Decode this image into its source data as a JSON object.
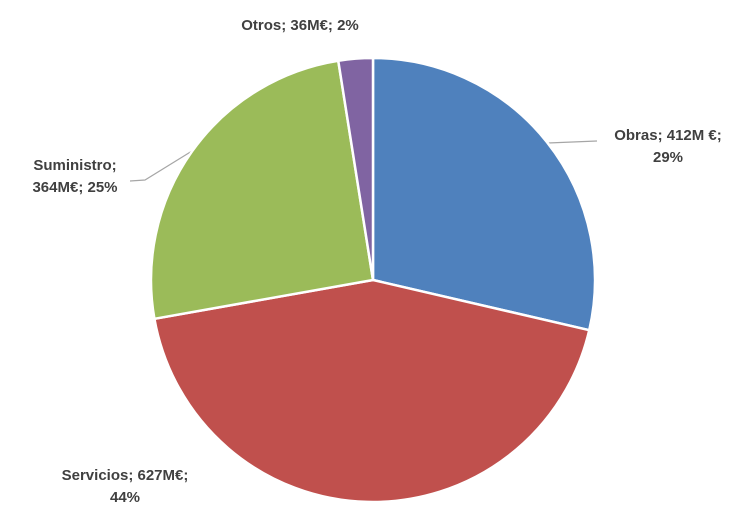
{
  "chart_data": {
    "type": "pie",
    "values": [
      412,
      627,
      364,
      36
    ],
    "value_labels": [
      [
        "Obras; 412M €;",
        "29%"
      ],
      [
        "Servicios; 627M€;",
        "44%"
      ],
      [
        "Suministro;",
        "364M€; 25%"
      ],
      [
        "Otros; 36M€; 2%"
      ]
    ],
    "colors": [
      "#4f81bd",
      "#c0504d",
      "#9bbb59",
      "#8064a2"
    ]
  }
}
